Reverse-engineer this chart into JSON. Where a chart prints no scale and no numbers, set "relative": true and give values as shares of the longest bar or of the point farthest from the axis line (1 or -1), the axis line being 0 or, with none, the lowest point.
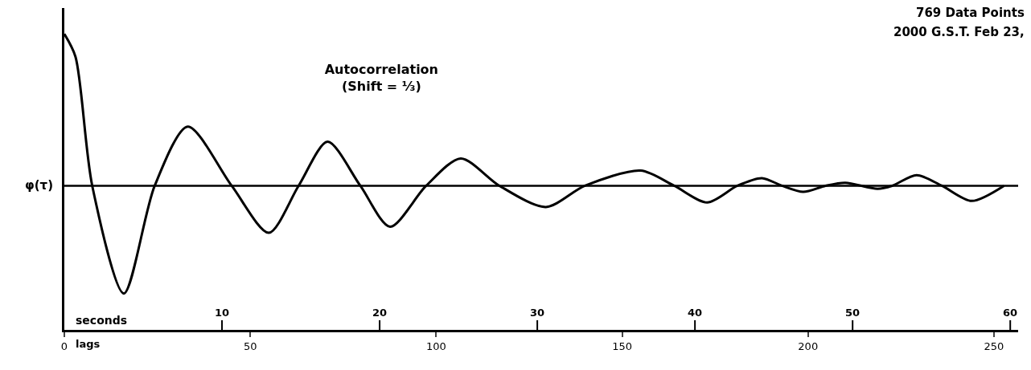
{
  "chart_data": {
    "type": "line",
    "relative": true,
    "title": "Autocorrelation",
    "subtitle": "(Shift = ⅓)",
    "ylabel": "φ(τ)",
    "xlabel": "lags",
    "x2label": "seconds",
    "x": [
      0,
      3,
      7.5,
      16,
      24.3,
      33.2,
      45,
      55,
      63,
      70.8,
      79.6,
      87.6,
      97.3,
      106.6,
      117,
      129.5,
      140,
      155,
      164,
      172.9,
      181,
      187.6,
      193,
      198.7,
      204.7,
      210,
      218.7,
      222.6,
      229.2,
      236,
      244,
      252.7
    ],
    "series": [
      {
        "color": "#000000",
        "values": [
          1,
          0.85,
          0,
          -0.71,
          0,
          0.39,
          0,
          -0.31,
          0,
          0.29,
          0,
          -0.27,
          0,
          0.18,
          0,
          -0.14,
          0,
          0.1,
          0,
          -0.11,
          0,
          0.05,
          0,
          -0.04,
          0,
          0.02,
          -0.02,
          0,
          0.07,
          0,
          -0.1,
          0
        ]
      }
    ],
    "xlim": [
      0,
      256.5
    ],
    "xticks": [
      0,
      50,
      100,
      150,
      200,
      250
    ],
    "x2lim": [
      0,
      60.5
    ],
    "x2ticks": [
      10,
      20,
      30,
      40,
      50,
      60
    ],
    "ref_lines": [
      {
        "axis": "y",
        "value": 0,
        "color": "#000000"
      }
    ],
    "annotations": [
      "769 Data Points",
      "2000 G.S.T. Feb 23,"
    ],
    "marker": "none",
    "line_style": "solid"
  }
}
